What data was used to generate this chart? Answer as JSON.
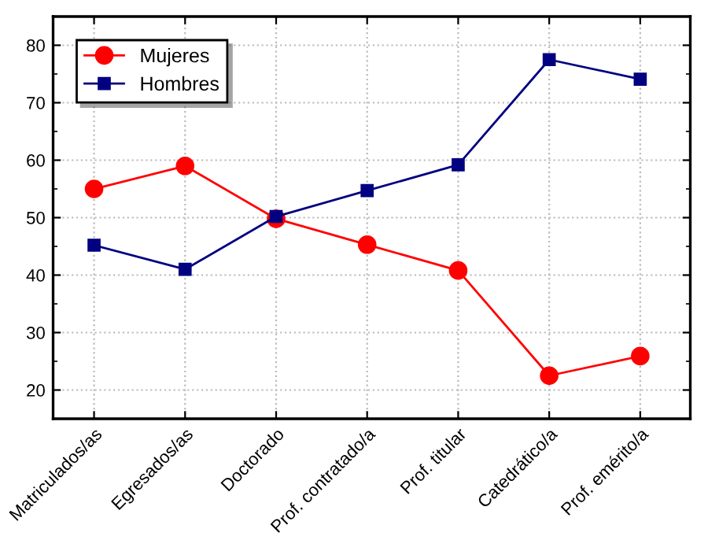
{
  "chart_data": {
    "type": "line",
    "categories": [
      "Matriculados/as",
      "Egresados/as",
      "Doctorado",
      "Prof. contratado/a",
      "Prof. titular",
      "Catedrático/a",
      "Prof. emérito/a"
    ],
    "series": [
      {
        "name": "Mujeres",
        "color": "#ff0000",
        "marker": "circle",
        "values": [
          55,
          59,
          49.8,
          45.3,
          40.8,
          22.5,
          25.9
        ]
      },
      {
        "name": "Hombres",
        "color": "#000080",
        "marker": "square",
        "values": [
          45.2,
          41,
          50.2,
          54.7,
          59.2,
          77.5,
          74.1
        ]
      }
    ],
    "ylim": [
      15,
      85
    ],
    "yticks": [
      20,
      30,
      40,
      50,
      60,
      70,
      80
    ],
    "grid": true,
    "legend": "top left",
    "line_style": "solid"
  }
}
